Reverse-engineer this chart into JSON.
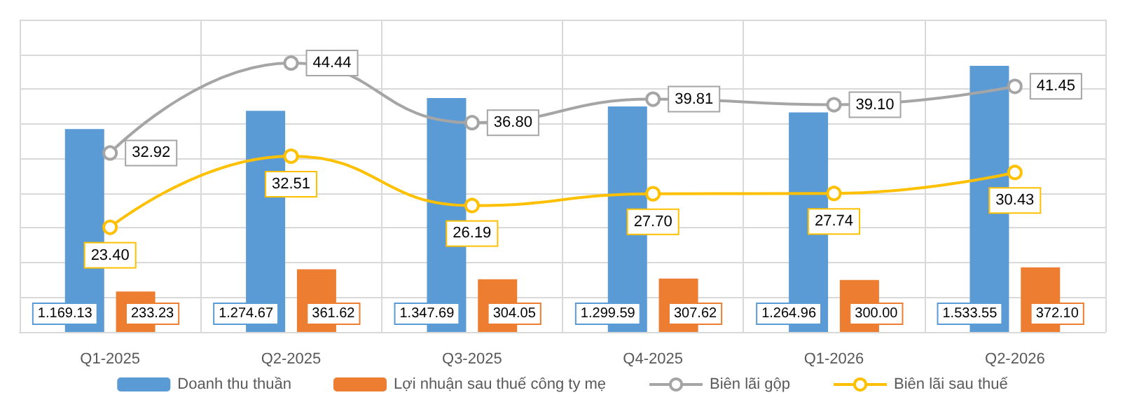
{
  "chart_data": {
    "type": "bar",
    "categories": [
      "Q1-2025",
      "Q2-2025",
      "Q3-2025",
      "Q4-2025",
      "Q1-2026",
      "Q2-2026"
    ],
    "series": [
      {
        "name": "Doanh thu thuần",
        "color": "#5b9bd5",
        "values": [
          1169.13,
          1274.67,
          1347.69,
          1299.59,
          1264.96,
          1533.55
        ],
        "value_labels": [
          "1.169.13",
          "1.274.67",
          "1.347.69",
          "1.299.59",
          "1.264.96",
          "1.533.55"
        ]
      },
      {
        "name": "Lợi nhuận sau thuế công ty mẹ",
        "color": "#ed7d31",
        "values": [
          233.23,
          361.62,
          304.05,
          307.62,
          300.0,
          372.1
        ],
        "value_labels": [
          "233.23",
          "361.62",
          "304.05",
          "307.62",
          "300.00",
          "372.10"
        ]
      },
      {
        "name": "Biên lãi gộp",
        "type": "line",
        "axis": "y2",
        "color": "#a5a5a5",
        "values": [
          32.92,
          44.44,
          36.8,
          39.81,
          39.1,
          41.45
        ],
        "value_labels": [
          "32.92",
          "44.44",
          "36.80",
          "39.81",
          "39.10",
          "41.45"
        ]
      },
      {
        "name": "Biên lãi sau thuế",
        "type": "line",
        "axis": "y2",
        "color": "#ffc000",
        "values": [
          23.4,
          32.51,
          26.19,
          27.7,
          27.74,
          30.43
        ],
        "value_labels": [
          "23.40",
          "32.51",
          "26.19",
          "27.70",
          "27.74",
          "30.43"
        ]
      }
    ],
    "ylim": [
      0,
      1800
    ],
    "yticks": [
      {
        "value": 0,
        "label": null
      },
      {
        "value": 200,
        "label": null
      },
      {
        "value": 400,
        "label": null
      },
      {
        "value": 600,
        "label": null
      },
      {
        "value": 800,
        "label": null
      },
      {
        "value": 1000,
        "label": null
      },
      {
        "value": 1200,
        "label": null
      },
      {
        "value": 1400,
        "label": null
      },
      {
        "value": 1600,
        "label": null
      },
      {
        "value": 1800,
        "label": null
      }
    ],
    "y2lim": [
      10,
      50
    ],
    "tick_labels": "x",
    "grid": true,
    "legend": "bottom",
    "marker": "circle",
    "line_style": "solid"
  }
}
